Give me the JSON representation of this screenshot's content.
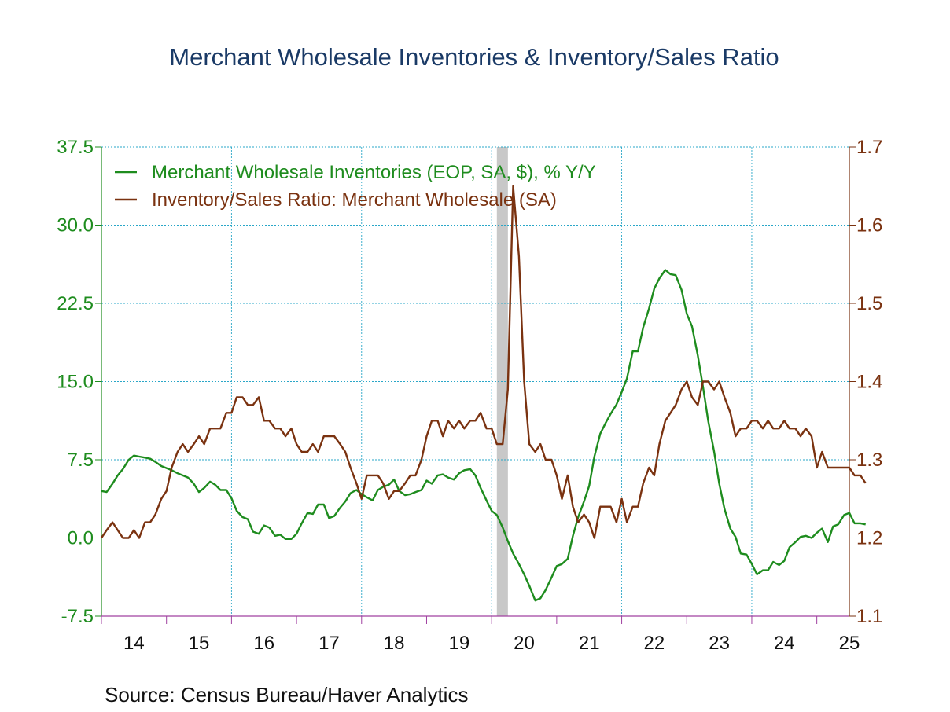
{
  "chart_data": {
    "type": "line",
    "title": "Merchant Wholesale Inventories & Inventory/Sales Ratio",
    "source": "Source:  Census Bureau/Haver Analytics",
    "x_range": [
      2014.0,
      2025.5
    ],
    "x_tick_labels": [
      "14",
      "15",
      "16",
      "17",
      "18",
      "19",
      "20",
      "21",
      "22",
      "23",
      "24",
      "25"
    ],
    "y_left": {
      "range": [
        -7.5,
        37.5
      ],
      "ticks": [
        "-7.5",
        "0.0",
        "7.5",
        "15.0",
        "22.5",
        "30.0",
        "37.5"
      ]
    },
    "y_right": {
      "range": [
        1.1,
        1.7
      ],
      "ticks": [
        "1.1",
        "1.2",
        "1.3",
        "1.4",
        "1.5",
        "1.6",
        "1.7"
      ]
    },
    "grid": true,
    "legend_position": "top-left",
    "recession_shading": [
      2020.08,
      2020.25
    ],
    "series": [
      {
        "name": "Merchant Wholesale Inventories (EOP, SA, $), % Y/Y",
        "axis": "left",
        "color": "#1e8c1e",
        "points": [
          [
            2014.0,
            4.5
          ],
          [
            2014.08,
            4.4
          ],
          [
            2014.17,
            5.2
          ],
          [
            2014.25,
            6.0
          ],
          [
            2014.33,
            6.6
          ],
          [
            2014.42,
            7.5
          ],
          [
            2014.5,
            7.9
          ],
          [
            2014.58,
            7.8
          ],
          [
            2014.67,
            7.7
          ],
          [
            2014.75,
            7.6
          ],
          [
            2014.83,
            7.3
          ],
          [
            2014.92,
            6.9
          ],
          [
            2015.0,
            6.7
          ],
          [
            2015.08,
            6.5
          ],
          [
            2015.17,
            6.2
          ],
          [
            2015.25,
            6.0
          ],
          [
            2015.33,
            5.8
          ],
          [
            2015.42,
            5.2
          ],
          [
            2015.5,
            4.4
          ],
          [
            2015.58,
            4.8
          ],
          [
            2015.67,
            5.4
          ],
          [
            2015.75,
            5.1
          ],
          [
            2015.83,
            4.6
          ],
          [
            2015.92,
            4.6
          ],
          [
            2016.0,
            3.8
          ],
          [
            2016.08,
            2.6
          ],
          [
            2016.17,
            2.0
          ],
          [
            2016.25,
            1.8
          ],
          [
            2016.33,
            0.6
          ],
          [
            2016.42,
            0.4
          ],
          [
            2016.5,
            1.2
          ],
          [
            2016.58,
            1.0
          ],
          [
            2016.67,
            0.2
          ],
          [
            2016.75,
            0.3
          ],
          [
            2016.83,
            -0.1
          ],
          [
            2016.92,
            -0.1
          ],
          [
            2017.0,
            0.4
          ],
          [
            2017.08,
            1.4
          ],
          [
            2017.17,
            2.4
          ],
          [
            2017.25,
            2.3
          ],
          [
            2017.33,
            3.2
          ],
          [
            2017.42,
            3.2
          ],
          [
            2017.5,
            1.9
          ],
          [
            2017.58,
            2.1
          ],
          [
            2017.67,
            2.9
          ],
          [
            2017.75,
            3.5
          ],
          [
            2017.83,
            4.3
          ],
          [
            2017.92,
            4.6
          ],
          [
            2018.0,
            4.2
          ],
          [
            2018.08,
            3.9
          ],
          [
            2018.17,
            3.6
          ],
          [
            2018.25,
            4.6
          ],
          [
            2018.33,
            4.9
          ],
          [
            2018.42,
            5.1
          ],
          [
            2018.5,
            5.6
          ],
          [
            2018.58,
            4.5
          ],
          [
            2018.67,
            4.1
          ],
          [
            2018.75,
            4.2
          ],
          [
            2018.83,
            4.4
          ],
          [
            2018.92,
            4.6
          ],
          [
            2019.0,
            5.5
          ],
          [
            2019.08,
            5.2
          ],
          [
            2019.17,
            6.0
          ],
          [
            2019.25,
            6.1
          ],
          [
            2019.33,
            5.8
          ],
          [
            2019.42,
            5.6
          ],
          [
            2019.5,
            6.2
          ],
          [
            2019.58,
            6.5
          ],
          [
            2019.67,
            6.6
          ],
          [
            2019.75,
            6.0
          ],
          [
            2019.83,
            4.8
          ],
          [
            2019.92,
            3.6
          ],
          [
            2020.0,
            2.6
          ],
          [
            2020.08,
            2.2
          ],
          [
            2020.17,
            1.0
          ],
          [
            2020.25,
            -0.3
          ],
          [
            2020.33,
            -1.5
          ],
          [
            2020.42,
            -2.5
          ],
          [
            2020.5,
            -3.5
          ],
          [
            2020.58,
            -4.6
          ],
          [
            2020.67,
            -6.0
          ],
          [
            2020.75,
            -5.8
          ],
          [
            2020.83,
            -5.0
          ],
          [
            2020.92,
            -3.8
          ],
          [
            2021.0,
            -2.7
          ],
          [
            2021.08,
            -2.5
          ],
          [
            2021.17,
            -2.0
          ],
          [
            2021.25,
            0.2
          ],
          [
            2021.33,
            2.0
          ],
          [
            2021.42,
            3.5
          ],
          [
            2021.5,
            5.0
          ],
          [
            2021.58,
            7.8
          ],
          [
            2021.67,
            10.0
          ],
          [
            2021.75,
            11.0
          ],
          [
            2021.83,
            11.9
          ],
          [
            2021.92,
            12.8
          ],
          [
            2022.0,
            14.0
          ],
          [
            2022.08,
            15.3
          ],
          [
            2022.17,
            17.9
          ],
          [
            2022.25,
            17.9
          ],
          [
            2022.33,
            20.2
          ],
          [
            2022.42,
            22.0
          ],
          [
            2022.5,
            23.9
          ],
          [
            2022.58,
            24.9
          ],
          [
            2022.67,
            25.7
          ],
          [
            2022.75,
            25.3
          ],
          [
            2022.83,
            25.2
          ],
          [
            2022.92,
            23.8
          ],
          [
            2023.0,
            21.5
          ],
          [
            2023.08,
            20.3
          ],
          [
            2023.17,
            17.5
          ],
          [
            2023.25,
            14.5
          ],
          [
            2023.33,
            11.2
          ],
          [
            2023.42,
            8.3
          ],
          [
            2023.5,
            5.2
          ],
          [
            2023.58,
            2.8
          ],
          [
            2023.67,
            0.9
          ],
          [
            2023.75,
            0.1
          ],
          [
            2023.83,
            -1.5
          ],
          [
            2023.92,
            -1.6
          ],
          [
            2024.0,
            -2.5
          ],
          [
            2024.08,
            -3.5
          ],
          [
            2024.17,
            -3.1
          ],
          [
            2024.25,
            -3.1
          ],
          [
            2024.33,
            -2.3
          ],
          [
            2024.42,
            -2.6
          ],
          [
            2024.5,
            -2.2
          ],
          [
            2024.58,
            -0.9
          ],
          [
            2024.67,
            -0.4
          ],
          [
            2024.75,
            0.1
          ],
          [
            2024.83,
            0.2
          ],
          [
            2024.92,
            0.0
          ],
          [
            2025.0,
            0.5
          ],
          [
            2025.08,
            0.9
          ],
          [
            2025.17,
            -0.4
          ],
          [
            2025.25,
            1.1
          ],
          [
            2025.33,
            1.3
          ],
          [
            2025.42,
            2.2
          ],
          [
            2025.5,
            2.4
          ],
          [
            2025.58,
            1.4
          ],
          [
            2025.67,
            1.4
          ],
          [
            2025.75,
            1.3
          ]
        ]
      },
      {
        "name": "Inventory/Sales Ratio: Merchant Wholesale (SA)",
        "axis": "right",
        "color": "#7a3210",
        "points": [
          [
            2014.0,
            1.2
          ],
          [
            2014.08,
            1.21
          ],
          [
            2014.17,
            1.22
          ],
          [
            2014.25,
            1.21
          ],
          [
            2014.33,
            1.2
          ],
          [
            2014.42,
            1.2
          ],
          [
            2014.5,
            1.21
          ],
          [
            2014.58,
            1.2
          ],
          [
            2014.67,
            1.22
          ],
          [
            2014.75,
            1.22
          ],
          [
            2014.83,
            1.23
          ],
          [
            2014.92,
            1.25
          ],
          [
            2015.0,
            1.26
          ],
          [
            2015.08,
            1.29
          ],
          [
            2015.17,
            1.31
          ],
          [
            2015.25,
            1.32
          ],
          [
            2015.33,
            1.31
          ],
          [
            2015.42,
            1.32
          ],
          [
            2015.5,
            1.33
          ],
          [
            2015.58,
            1.32
          ],
          [
            2015.67,
            1.34
          ],
          [
            2015.75,
            1.34
          ],
          [
            2015.83,
            1.34
          ],
          [
            2015.92,
            1.36
          ],
          [
            2016.0,
            1.36
          ],
          [
            2016.08,
            1.38
          ],
          [
            2016.17,
            1.38
          ],
          [
            2016.25,
            1.37
          ],
          [
            2016.33,
            1.37
          ],
          [
            2016.42,
            1.38
          ],
          [
            2016.5,
            1.35
          ],
          [
            2016.58,
            1.35
          ],
          [
            2016.67,
            1.34
          ],
          [
            2016.75,
            1.34
          ],
          [
            2016.83,
            1.33
          ],
          [
            2016.92,
            1.34
          ],
          [
            2017.0,
            1.32
          ],
          [
            2017.08,
            1.31
          ],
          [
            2017.17,
            1.31
          ],
          [
            2017.25,
            1.32
          ],
          [
            2017.33,
            1.31
          ],
          [
            2017.42,
            1.33
          ],
          [
            2017.5,
            1.33
          ],
          [
            2017.58,
            1.33
          ],
          [
            2017.67,
            1.32
          ],
          [
            2017.75,
            1.31
          ],
          [
            2017.83,
            1.29
          ],
          [
            2017.92,
            1.27
          ],
          [
            2018.0,
            1.25
          ],
          [
            2018.08,
            1.28
          ],
          [
            2018.17,
            1.28
          ],
          [
            2018.25,
            1.28
          ],
          [
            2018.33,
            1.27
          ],
          [
            2018.42,
            1.25
          ],
          [
            2018.5,
            1.26
          ],
          [
            2018.58,
            1.26
          ],
          [
            2018.67,
            1.27
          ],
          [
            2018.75,
            1.28
          ],
          [
            2018.83,
            1.28
          ],
          [
            2018.92,
            1.3
          ],
          [
            2019.0,
            1.33
          ],
          [
            2019.08,
            1.35
          ],
          [
            2019.17,
            1.35
          ],
          [
            2019.25,
            1.33
          ],
          [
            2019.33,
            1.35
          ],
          [
            2019.42,
            1.34
          ],
          [
            2019.5,
            1.35
          ],
          [
            2019.58,
            1.34
          ],
          [
            2019.67,
            1.35
          ],
          [
            2019.75,
            1.35
          ],
          [
            2019.83,
            1.36
          ],
          [
            2019.92,
            1.34
          ],
          [
            2020.0,
            1.34
          ],
          [
            2020.08,
            1.32
          ],
          [
            2020.17,
            1.32
          ],
          [
            2020.25,
            1.39
          ],
          [
            2020.33,
            1.65
          ],
          [
            2020.42,
            1.56
          ],
          [
            2020.5,
            1.4
          ],
          [
            2020.58,
            1.32
          ],
          [
            2020.67,
            1.31
          ],
          [
            2020.75,
            1.32
          ],
          [
            2020.83,
            1.3
          ],
          [
            2020.92,
            1.3
          ],
          [
            2021.0,
            1.28
          ],
          [
            2021.08,
            1.25
          ],
          [
            2021.17,
            1.28
          ],
          [
            2021.25,
            1.24
          ],
          [
            2021.33,
            1.22
          ],
          [
            2021.42,
            1.23
          ],
          [
            2021.5,
            1.22
          ],
          [
            2021.58,
            1.2
          ],
          [
            2021.67,
            1.24
          ],
          [
            2021.75,
            1.24
          ],
          [
            2021.83,
            1.24
          ],
          [
            2021.92,
            1.22
          ],
          [
            2022.0,
            1.25
          ],
          [
            2022.08,
            1.22
          ],
          [
            2022.17,
            1.24
          ],
          [
            2022.25,
            1.24
          ],
          [
            2022.33,
            1.27
          ],
          [
            2022.42,
            1.29
          ],
          [
            2022.5,
            1.28
          ],
          [
            2022.58,
            1.32
          ],
          [
            2022.67,
            1.35
          ],
          [
            2022.75,
            1.36
          ],
          [
            2022.83,
            1.37
          ],
          [
            2022.92,
            1.39
          ],
          [
            2023.0,
            1.4
          ],
          [
            2023.08,
            1.38
          ],
          [
            2023.17,
            1.37
          ],
          [
            2023.25,
            1.4
          ],
          [
            2023.33,
            1.4
          ],
          [
            2023.42,
            1.39
          ],
          [
            2023.5,
            1.4
          ],
          [
            2023.58,
            1.38
          ],
          [
            2023.67,
            1.36
          ],
          [
            2023.75,
            1.33
          ],
          [
            2023.83,
            1.34
          ],
          [
            2023.92,
            1.34
          ],
          [
            2024.0,
            1.35
          ],
          [
            2024.08,
            1.35
          ],
          [
            2024.17,
            1.34
          ],
          [
            2024.25,
            1.35
          ],
          [
            2024.33,
            1.34
          ],
          [
            2024.42,
            1.34
          ],
          [
            2024.5,
            1.35
          ],
          [
            2024.58,
            1.34
          ],
          [
            2024.67,
            1.34
          ],
          [
            2024.75,
            1.33
          ],
          [
            2024.83,
            1.34
          ],
          [
            2024.92,
            1.33
          ],
          [
            2025.0,
            1.29
          ],
          [
            2025.08,
            1.31
          ],
          [
            2025.17,
            1.29
          ],
          [
            2025.25,
            1.29
          ],
          [
            2025.33,
            1.29
          ],
          [
            2025.42,
            1.29
          ],
          [
            2025.5,
            1.29
          ],
          [
            2025.58,
            1.28
          ],
          [
            2025.67,
            1.28
          ],
          [
            2025.75,
            1.27
          ]
        ]
      }
    ]
  }
}
